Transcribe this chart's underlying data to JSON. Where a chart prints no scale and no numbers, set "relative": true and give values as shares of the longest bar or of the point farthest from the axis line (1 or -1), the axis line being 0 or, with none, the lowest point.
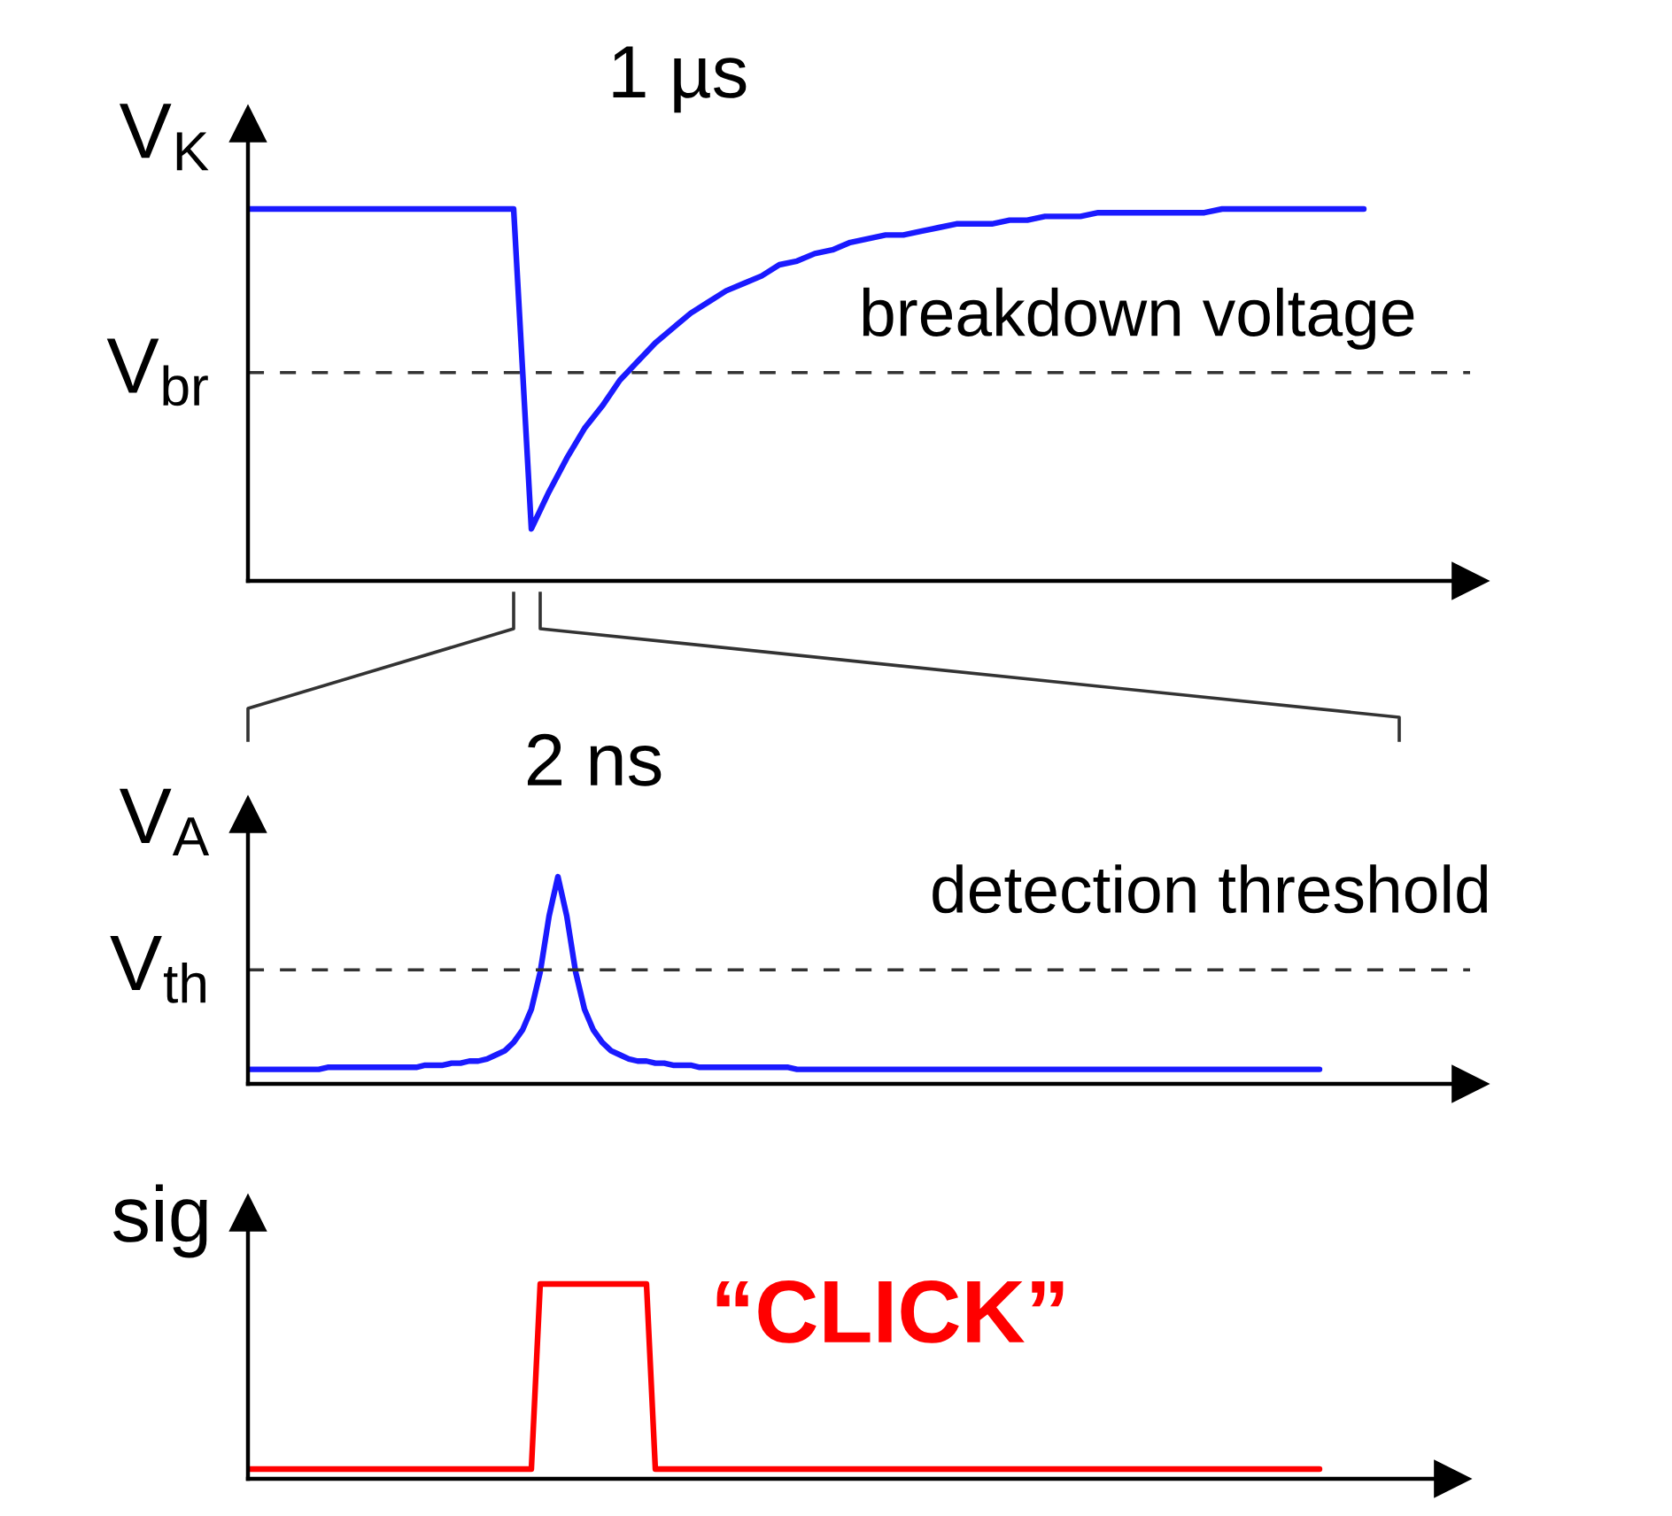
{
  "chart_data": [
    {
      "type": "line",
      "relative": true,
      "ylabel": "V$_{K}$",
      "categories": [
        null,
        null,
        null,
        null,
        null,
        null,
        null,
        null,
        null,
        null,
        null,
        null,
        null,
        null,
        null,
        null,
        null,
        null,
        null,
        null,
        null,
        null,
        null,
        null,
        null,
        null,
        null,
        null,
        null,
        null,
        null,
        null,
        null,
        null,
        null,
        null,
        null,
        null,
        null,
        null,
        null,
        null,
        null,
        null,
        null,
        null,
        null,
        null,
        null,
        null,
        null,
        null,
        null,
        null,
        null,
        null,
        null,
        null,
        null,
        null,
        null,
        null,
        null,
        null,
        null,
        null,
        null,
        null,
        null,
        null
      ],
      "series": [
        {
          "color": "#1a1aff",
          "values": [
            1,
            1,
            1,
            1,
            1,
            1,
            1,
            1,
            1,
            1,
            1,
            1,
            1,
            1,
            1,
            1,
            0.14,
            0.24,
            0.33,
            0.41,
            0.47,
            0.54,
            0.59,
            0.64,
            0.68,
            0.72,
            0.75,
            0.78,
            0.8,
            0.82,
            0.85,
            0.86,
            0.88,
            0.89,
            0.91,
            0.92,
            0.93,
            0.93,
            0.94,
            0.95,
            0.96,
            0.96,
            0.96,
            0.97,
            0.97,
            0.98,
            0.98,
            0.98,
            0.99,
            0.99,
            0.99,
            0.99,
            0.99,
            0.99,
            0.99,
            1,
            1,
            1,
            1,
            1,
            1,
            1,
            1,
            1,
            null,
            null,
            null,
            null,
            null,
            null
          ]
        }
      ],
      "ref_lines": [
        {
          "axis": "y",
          "value": 0.56,
          "label": "V$_{br}$",
          "color": "#333333",
          "line_style": "dashed"
        }
      ],
      "annotations": [
        "1 µs",
        "breakdown voltage"
      ]
    },
    {
      "type": "line",
      "relative": true,
      "ylabel": "V$_{A}$",
      "categories": [
        null,
        null,
        null,
        null,
        null,
        null,
        null,
        null,
        null,
        null,
        null,
        null,
        null,
        null,
        null,
        null,
        null,
        null,
        null,
        null,
        null,
        null,
        null,
        null,
        null,
        null,
        null,
        null,
        null,
        null,
        null,
        null,
        null,
        null,
        null,
        null,
        null,
        null,
        null,
        null,
        null,
        null,
        null,
        null,
        null,
        null,
        null,
        null,
        null,
        null,
        null,
        null,
        null,
        null,
        null,
        null,
        null,
        null,
        null,
        null,
        null,
        null,
        null,
        null,
        null,
        null,
        null,
        null,
        null,
        null,
        null,
        null,
        null,
        null,
        null,
        null,
        null,
        null,
        null,
        null,
        null,
        null,
        null,
        null,
        null,
        null,
        null,
        null,
        null,
        null,
        null,
        null,
        null,
        null,
        null,
        null,
        null,
        null,
        null,
        null,
        null,
        null,
        null,
        null,
        null,
        null,
        null,
        null,
        null,
        null,
        null,
        null,
        null,
        null,
        null,
        null,
        null,
        null,
        null,
        null,
        null,
        null,
        null,
        null,
        null,
        null,
        null,
        null,
        null,
        null,
        null,
        null,
        null,
        null,
        null,
        null,
        null,
        null,
        null
      ],
      "series": [
        {
          "color": "#1a1aff",
          "values": [
            0.07,
            0.07,
            0.07,
            0.07,
            0.07,
            0.07,
            0.07,
            0.07,
            0.07,
            0.08,
            0.08,
            0.08,
            0.08,
            0.08,
            0.08,
            0.08,
            0.08,
            0.08,
            0.08,
            0.08,
            0.09,
            0.09,
            0.09,
            0.1,
            0.1,
            0.11,
            0.11,
            0.12,
            0.14,
            0.16,
            0.2,
            0.26,
            0.36,
            0.54,
            0.81,
            1,
            0.81,
            0.54,
            0.36,
            0.26,
            0.2,
            0.16,
            0.14,
            0.12,
            0.11,
            0.11,
            0.1,
            0.1,
            0.09,
            0.09,
            0.09,
            0.08,
            0.08,
            0.08,
            0.08,
            0.08,
            0.08,
            0.08,
            0.08,
            0.08,
            0.08,
            0.08,
            0.07,
            0.07,
            0.07,
            0.07,
            0.07,
            0.07,
            0.07,
            0.07,
            0.07,
            0.07,
            0.07,
            0.07,
            0.07,
            0.07,
            0.07,
            0.07,
            0.07,
            0.07,
            0.07,
            0.07,
            0.07,
            0.07,
            0.07,
            0.07,
            0.07,
            0.07,
            0.07,
            0.07,
            0.07,
            0.07,
            0.07,
            0.07,
            0.07,
            0.07,
            0.07,
            0.07,
            0.07,
            0.07,
            0.07,
            0.07,
            0.07,
            0.07,
            0.07,
            0.07,
            0.07,
            0.07,
            0.07,
            0.07,
            0.07,
            0.07,
            0.07,
            0.07,
            0.07,
            0.07,
            0.07,
            0.07,
            0.07,
            0.07,
            0.07,
            0.07,
            null,
            null,
            null,
            null,
            null,
            null,
            null,
            null,
            null,
            null,
            null,
            null,
            null,
            null,
            null,
            null,
            null
          ]
        }
      ],
      "ref_lines": [
        {
          "axis": "y",
          "value": 0.55,
          "label": "V$_{th}$",
          "color": "#333333",
          "line_style": "dashed"
        }
      ],
      "annotations": [
        "2 ns",
        "detection threshold"
      ]
    },
    {
      "type": "line",
      "relative": true,
      "ylabel": "sig",
      "categories": [
        null,
        null,
        null,
        null,
        null,
        null,
        null,
        null,
        null,
        null,
        null,
        null,
        null,
        null,
        null,
        null,
        null,
        null,
        null,
        null,
        null,
        null,
        null,
        null,
        null,
        null,
        null,
        null,
        null,
        null,
        null,
        null,
        null,
        null,
        null,
        null,
        null,
        null,
        null,
        null,
        null,
        null,
        null,
        null,
        null,
        null,
        null,
        null,
        null,
        null,
        null,
        null,
        null,
        null,
        null,
        null,
        null,
        null,
        null,
        null,
        null,
        null,
        null,
        null,
        null,
        null,
        null,
        null,
        null,
        null,
        null,
        null,
        null,
        null,
        null,
        null,
        null,
        null,
        null,
        null,
        null,
        null,
        null,
        null,
        null,
        null,
        null,
        null,
        null,
        null,
        null,
        null,
        null,
        null,
        null,
        null,
        null,
        null,
        null,
        null,
        null,
        null,
        null,
        null,
        null,
        null,
        null,
        null,
        null,
        null,
        null,
        null,
        null,
        null,
        null,
        null,
        null,
        null,
        null,
        null,
        null,
        null,
        null,
        null,
        null,
        null,
        null,
        null,
        null,
        null,
        null,
        null,
        null,
        null,
        null,
        null,
        null
      ],
      "series": [
        {
          "color": "#ff0000",
          "values": [
            0.05,
            0.05,
            0.05,
            0.05,
            0.05,
            0.05,
            0.05,
            0.05,
            0.05,
            0.05,
            0.05,
            0.05,
            0.05,
            0.05,
            0.05,
            0.05,
            0.05,
            0.05,
            0.05,
            0.05,
            0.05,
            0.05,
            0.05,
            0.05,
            0.05,
            0.05,
            0.05,
            0.05,
            0.05,
            0.05,
            0.05,
            0.05,
            0.05,
            1,
            1,
            1,
            1,
            1,
            1,
            1,
            1,
            1,
            1,
            1,
            1,
            1,
            0.05,
            0.05,
            0.05,
            0.05,
            0.05,
            0.05,
            0.05,
            0.05,
            0.05,
            0.05,
            0.05,
            0.05,
            0.05,
            0.05,
            0.05,
            0.05,
            0.05,
            0.05,
            0.05,
            0.05,
            0.05,
            0.05,
            0.05,
            0.05,
            0.05,
            0.05,
            0.05,
            0.05,
            0.05,
            0.05,
            0.05,
            0.05,
            0.05,
            0.05,
            0.05,
            0.05,
            0.05,
            0.05,
            0.05,
            0.05,
            0.05,
            0.05,
            0.05,
            0.05,
            0.05,
            0.05,
            0.05,
            0.05,
            0.05,
            0.05,
            0.05,
            0.05,
            0.05,
            0.05,
            0.05,
            0.05,
            0.05,
            0.05,
            0.05,
            0.05,
            0.05,
            0.05,
            0.05,
            0.05,
            0.05,
            0.05,
            0.05,
            0.05,
            0.05,
            0.05,
            0.05,
            0.05,
            0.05,
            0.05,
            0.05,
            0.05,
            null,
            null,
            null,
            null,
            null,
            null,
            null,
            null,
            null,
            null,
            null,
            null,
            null,
            null,
            null
          ]
        }
      ],
      "annotations": [
        "“CLICK”"
      ]
    }
  ]
}
